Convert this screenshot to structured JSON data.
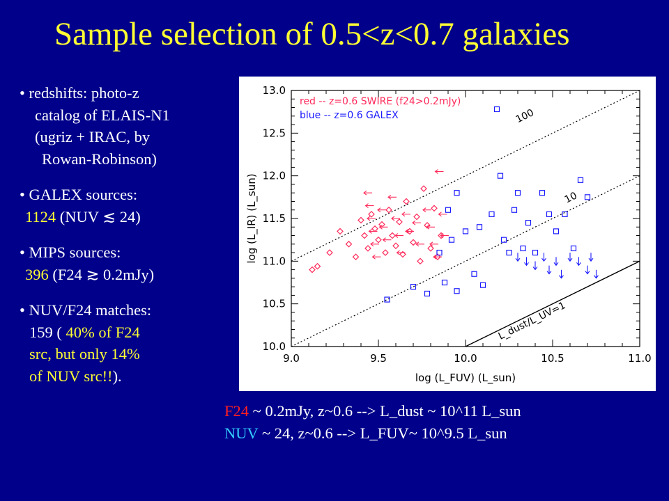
{
  "title": "Sample selection of 0.5<z<0.7 galaxies",
  "left": {
    "bullet": "•",
    "redshift_lines": [
      "redshifts: photo-z",
      "catalog of ELAIS-N1",
      "(ugriz + IRAC, by",
      "Rowan-Robinson)"
    ],
    "galex_head": "GALEX sources:",
    "galex_count": "1124",
    "galex_cond": "(NUV ≲ 24)",
    "mips_head": "MIPS sources:",
    "mips_count": "396",
    "mips_cond": "(F24 ≳ 0.2mJy)",
    "match_head": "NUV/F24 matches:",
    "match_l1_a": "159 (",
    "match_l1_b": "40% of F24",
    "match_l2": "src, but only 14%",
    "match_l3_a": "of NUV src!!",
    "match_l3_b": ")."
  },
  "notes": {
    "line1_key": "F24",
    "line1_rest": "~ 0.2mJy, z~0.6 --> L_dust ~ 10^11 L_sun",
    "line2_key": "NUV",
    "line2_rest": "~ 24, z~0.6 --> L_FUV~ 10^9.5 L_sun"
  },
  "colors": {
    "red": "#ff2a5a",
    "blue": "#1a1aff",
    "title": "#ffff33"
  },
  "chart_data": {
    "type": "scatter",
    "xlabel": "log (L_FUV) (L_sun)",
    "ylabel": "log (L_IR) (L_sun)",
    "xlim": [
      9.0,
      11.0
    ],
    "ylim": [
      10.0,
      13.0
    ],
    "xticks": [
      "9.0",
      "9.5",
      "10.0",
      "10.5",
      "11.0"
    ],
    "yticks": [
      "10.0",
      "10.5",
      "11.0",
      "11.5",
      "12.0",
      "12.5",
      "13.0"
    ],
    "legend": [
      "red -- z=0.6 SWIRE (f24>0.2mJy)",
      "blue -- z=0.6 GALEX"
    ],
    "lines": [
      {
        "label": "100",
        "offset": 2
      },
      {
        "label": "10",
        "offset": 1
      },
      {
        "label": "L_dust/L_UV=1",
        "offset": 0
      }
    ],
    "series": [
      {
        "name": "red -- z=0.6 SWIRE (f24>0.2mJy)",
        "marker": "diamond",
        "points": [
          [
            9.12,
            10.9
          ],
          [
            9.15,
            10.94
          ],
          [
            9.22,
            11.1
          ],
          [
            9.28,
            11.35
          ],
          [
            9.33,
            11.2
          ],
          [
            9.37,
            11.05
          ],
          [
            9.4,
            11.48
          ],
          [
            9.42,
            11.3
          ],
          [
            9.44,
            11.15
          ],
          [
            9.46,
            11.55
          ],
          [
            9.48,
            11.38
          ],
          [
            9.5,
            11.25
          ],
          [
            9.52,
            11.43
          ],
          [
            9.54,
            11.1
          ],
          [
            9.56,
            11.6
          ],
          [
            9.58,
            11.3
          ],
          [
            9.6,
            11.18
          ],
          [
            9.62,
            11.46
          ],
          [
            9.64,
            11.08
          ],
          [
            9.66,
            11.7
          ],
          [
            9.68,
            11.35
          ],
          [
            9.7,
            11.22
          ],
          [
            9.72,
            11.52
          ],
          [
            9.74,
            11.0
          ],
          [
            9.76,
            11.85
          ],
          [
            9.78,
            11.42
          ],
          [
            9.8,
            11.15
          ],
          [
            9.82,
            11.62
          ],
          [
            9.84,
            11.05
          ],
          [
            9.86,
            11.3
          ]
        ]
      },
      {
        "name": "red -- z=0.6 SWIRE (f24>0.2mJy) upper limits",
        "marker": "left-arrow",
        "points": [
          [
            9.44,
            11.8
          ],
          [
            9.45,
            11.65
          ],
          [
            9.46,
            11.5
          ],
          [
            9.47,
            11.35
          ],
          [
            9.48,
            11.2
          ],
          [
            9.49,
            11.05
          ],
          [
            9.52,
            11.6
          ],
          [
            9.53,
            11.4
          ],
          [
            9.55,
            11.25
          ],
          [
            9.58,
            11.75
          ],
          [
            9.6,
            11.5
          ],
          [
            9.62,
            11.3
          ],
          [
            9.63,
            11.1
          ],
          [
            9.66,
            11.55
          ],
          [
            9.68,
            11.35
          ],
          [
            9.72,
            11.45
          ],
          [
            9.74,
            11.2
          ],
          [
            9.78,
            11.6
          ],
          [
            9.8,
            11.4
          ],
          [
            9.82,
            11.2
          ],
          [
            9.84,
            11.05
          ],
          [
            9.85,
            12.05
          ],
          [
            9.87,
            11.55
          ],
          [
            9.88,
            11.3
          ]
        ]
      },
      {
        "name": "blue -- z=0.6 GALEX",
        "marker": "square",
        "points": [
          [
            9.55,
            10.55
          ],
          [
            9.7,
            10.7
          ],
          [
            9.78,
            10.62
          ],
          [
            9.88,
            10.75
          ],
          [
            9.95,
            10.65
          ],
          [
            10.05,
            10.85
          ],
          [
            10.1,
            10.72
          ],
          [
            10.15,
            11.55
          ],
          [
            10.18,
            12.78
          ],
          [
            10.2,
            12.0
          ],
          [
            10.22,
            11.25
          ],
          [
            10.25,
            11.1
          ],
          [
            10.28,
            11.6
          ],
          [
            10.3,
            11.8
          ],
          [
            10.33,
            11.15
          ],
          [
            10.36,
            11.45
          ],
          [
            10.4,
            11.1
          ],
          [
            10.44,
            11.8
          ],
          [
            10.48,
            11.55
          ],
          [
            10.52,
            11.35
          ],
          [
            10.57,
            11.55
          ],
          [
            10.62,
            11.15
          ],
          [
            10.66,
            11.95
          ],
          [
            10.7,
            11.75
          ],
          [
            9.9,
            11.6
          ],
          [
            9.95,
            11.8
          ],
          [
            10.0,
            11.35
          ],
          [
            9.85,
            11.1
          ],
          [
            9.92,
            11.25
          ],
          [
            10.08,
            11.4
          ]
        ]
      },
      {
        "name": "blue -- z=0.6 GALEX upper limits",
        "marker": "down-arrow",
        "points": [
          [
            10.3,
            11.05
          ],
          [
            10.35,
            11.0
          ],
          [
            10.4,
            10.95
          ],
          [
            10.45,
            11.05
          ],
          [
            10.48,
            10.9
          ],
          [
            10.52,
            11.0
          ],
          [
            10.55,
            10.85
          ],
          [
            10.6,
            11.05
          ],
          [
            10.65,
            11.0
          ],
          [
            10.7,
            10.9
          ],
          [
            10.72,
            11.05
          ],
          [
            10.75,
            10.85
          ]
        ]
      }
    ]
  }
}
